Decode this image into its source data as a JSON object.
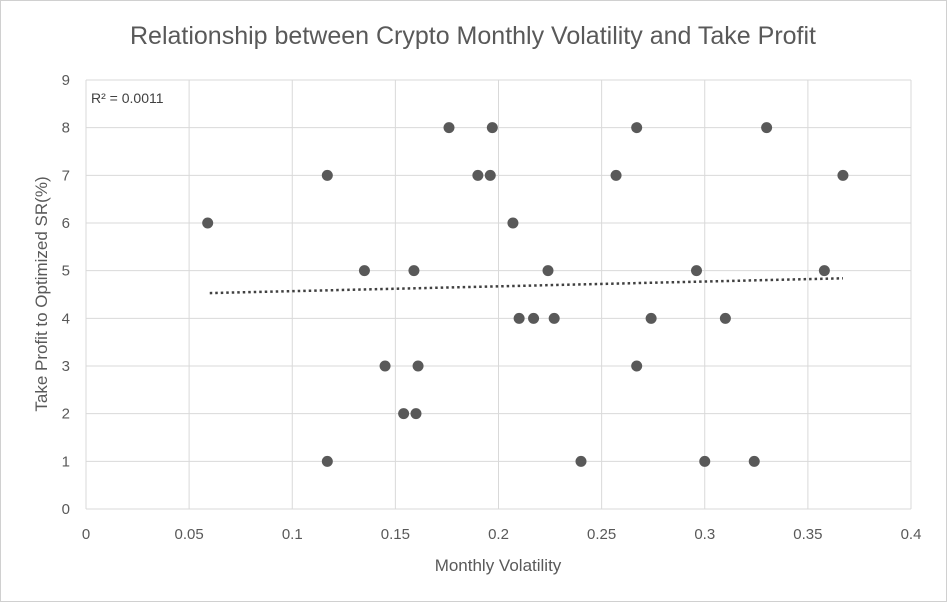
{
  "chart_data": {
    "type": "scatter",
    "title": "Relationship between Crypto Monthly Volatility and Take Profit",
    "xlabel": "Monthly Volatility",
    "ylabel": "Take Profit to Optimized SR(%)",
    "xlim": [
      0,
      0.4
    ],
    "ylim": [
      0,
      9
    ],
    "x_ticks": [
      "0",
      "0.05",
      "0.1",
      "0.15",
      "0.2",
      "0.25",
      "0.3",
      "0.35",
      "0.4"
    ],
    "y_ticks": [
      "0",
      "1",
      "2",
      "3",
      "4",
      "5",
      "6",
      "7",
      "8",
      "9"
    ],
    "grid": true,
    "legend": "none",
    "marker_color": "#595959",
    "trendline": {
      "type": "linear",
      "style": "dotted",
      "r_squared_label": "R² = 0.0011",
      "x_range": [
        0.06,
        0.367
      ],
      "y_range": [
        4.53,
        4.84
      ]
    },
    "points": [
      {
        "x": 0.059,
        "y": 6
      },
      {
        "x": 0.117,
        "y": 7
      },
      {
        "x": 0.117,
        "y": 1
      },
      {
        "x": 0.135,
        "y": 5
      },
      {
        "x": 0.145,
        "y": 3
      },
      {
        "x": 0.154,
        "y": 2
      },
      {
        "x": 0.159,
        "y": 5
      },
      {
        "x": 0.16,
        "y": 2
      },
      {
        "x": 0.161,
        "y": 3
      },
      {
        "x": 0.176,
        "y": 8
      },
      {
        "x": 0.19,
        "y": 7
      },
      {
        "x": 0.196,
        "y": 7
      },
      {
        "x": 0.197,
        "y": 8
      },
      {
        "x": 0.207,
        "y": 6
      },
      {
        "x": 0.21,
        "y": 4
      },
      {
        "x": 0.217,
        "y": 4
      },
      {
        "x": 0.224,
        "y": 5
      },
      {
        "x": 0.227,
        "y": 4
      },
      {
        "x": 0.24,
        "y": 1
      },
      {
        "x": 0.257,
        "y": 7
      },
      {
        "x": 0.267,
        "y": 8
      },
      {
        "x": 0.267,
        "y": 3
      },
      {
        "x": 0.274,
        "y": 4
      },
      {
        "x": 0.296,
        "y": 5
      },
      {
        "x": 0.3,
        "y": 1
      },
      {
        "x": 0.31,
        "y": 4
      },
      {
        "x": 0.324,
        "y": 1
      },
      {
        "x": 0.33,
        "y": 8
      },
      {
        "x": 0.358,
        "y": 5
      },
      {
        "x": 0.367,
        "y": 7
      }
    ]
  }
}
